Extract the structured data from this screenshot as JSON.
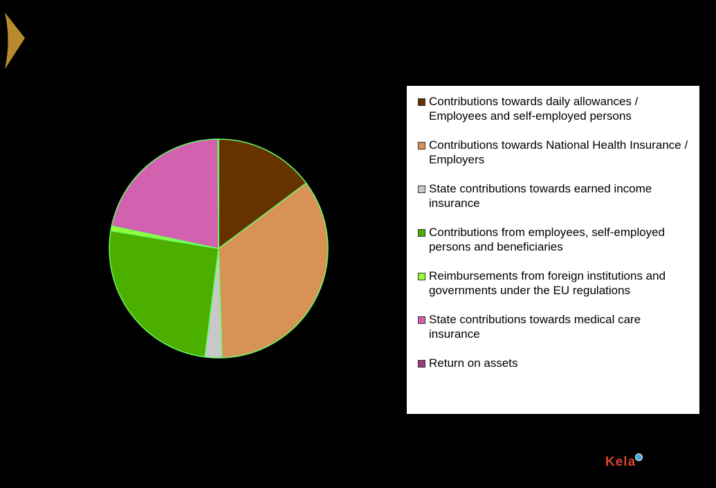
{
  "logo": {
    "text": "Kela",
    "color": "#d9442a"
  },
  "chart_data": {
    "type": "pie",
    "title": "",
    "start_angle_deg": 0,
    "direction": "clockwise",
    "slice_border_color": "#66ff66",
    "legend_position": "right",
    "slices": [
      {
        "label": "Contributions towards daily allowances / Employees and self-employed persons",
        "value": 14.8,
        "color": "#663300"
      },
      {
        "label": "Contributions towards National Health Insurance / Employers",
        "value": 34.7,
        "color": "#d99255"
      },
      {
        "label": "State contributions towards earned income insurance",
        "value": 2.5,
        "color": "#c8c8c8"
      },
      {
        "label": "Contributions from employees, self-employed persons and beneficiaries",
        "value": 25.6,
        "color": "#4caf00"
      },
      {
        "label": "Reimbursements from foreign institutions and governments under the EU regulations",
        "value": 0.7,
        "color": "#99ff33"
      },
      {
        "label": "State contributions towards medical care insurance",
        "value": 21.6,
        "color": "#d262b0"
      },
      {
        "label": "Return on assets",
        "value": 0.1,
        "color": "#a3397e"
      }
    ]
  }
}
